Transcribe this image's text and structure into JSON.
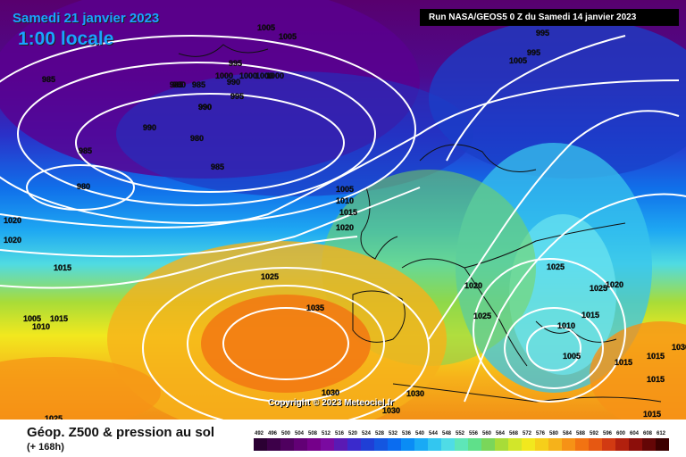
{
  "header": {
    "date": "Samedi 21 janvier 2023",
    "time": "1:00 locale",
    "run": "Run NASA/GEOS5 0 Z du Samedi 14 janvier 2023"
  },
  "footer": {
    "title": "Géop. Z500 & pression au sol",
    "subtitle": "(+ 168h)"
  },
  "copyright": "Copyright © 2023 Meteociel.fr",
  "legend": {
    "ticks": [
      "492",
      "496",
      "500",
      "504",
      "508",
      "512",
      "516",
      "520",
      "524",
      "528",
      "532",
      "536",
      "540",
      "544",
      "548",
      "552",
      "556",
      "560",
      "564",
      "568",
      "572",
      "576",
      "580",
      "584",
      "588",
      "592",
      "596",
      "600",
      "604",
      "608",
      "612"
    ],
    "colors": [
      "#2b0033",
      "#3d0049",
      "#4f005f",
      "#620075",
      "#75008a",
      "#7a0aa0",
      "#5a1ab4",
      "#3a2acc",
      "#1f3fd6",
      "#1456e0",
      "#0a6cf0",
      "#0a8cf5",
      "#19aaf5",
      "#33c6f0",
      "#4fdce6",
      "#5ee6b8",
      "#5fe08a",
      "#7ad65a",
      "#a8dc38",
      "#d2e62a",
      "#f2e81e",
      "#f6cf1a",
      "#f6b21a",
      "#f69216",
      "#f27312",
      "#e65812",
      "#d23a12",
      "#b2200e",
      "#8c0e0a",
      "#640606",
      "#3c0000"
    ]
  },
  "isobars": [
    "1005",
    "1005",
    "995",
    "990",
    "995",
    "1000",
    "1000",
    "1000",
    "1000",
    "995",
    "985",
    "985",
    "990",
    "990",
    "985",
    "980",
    "990",
    "985",
    "980",
    "985",
    "980",
    "1005",
    "1010",
    "1015",
    "1020",
    "1020",
    "1020",
    "1015",
    "1025",
    "1035",
    "1030",
    "1030",
    "1030",
    "1025",
    "1020",
    "1025",
    "1025",
    "1020",
    "1015",
    "1010",
    "1005",
    "1015",
    "1015",
    "1015",
    "1005",
    "1010",
    "1025",
    "1015",
    "1030",
    "995",
    "1005",
    "1015"
  ]
}
